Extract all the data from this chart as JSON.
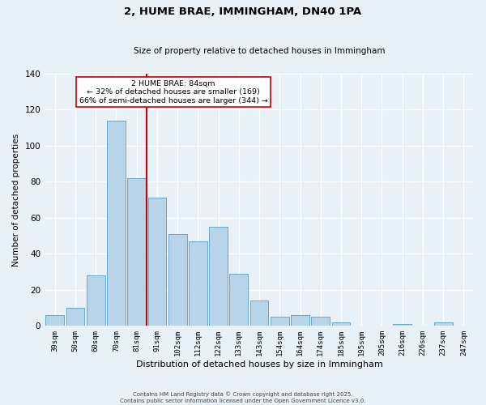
{
  "title": "2, HUME BRAE, IMMINGHAM, DN40 1PA",
  "subtitle": "Size of property relative to detached houses in Immingham",
  "xlabel": "Distribution of detached houses by size in Immingham",
  "ylabel": "Number of detached properties",
  "categories": [
    "39sqm",
    "50sqm",
    "60sqm",
    "70sqm",
    "81sqm",
    "91sqm",
    "102sqm",
    "112sqm",
    "122sqm",
    "133sqm",
    "143sqm",
    "154sqm",
    "164sqm",
    "174sqm",
    "185sqm",
    "195sqm",
    "205sqm",
    "216sqm",
    "226sqm",
    "237sqm",
    "247sqm"
  ],
  "values": [
    6,
    10,
    28,
    114,
    82,
    71,
    51,
    47,
    55,
    29,
    14,
    5,
    6,
    5,
    2,
    0,
    0,
    1,
    0,
    2,
    0
  ],
  "bar_color": "#b8d4e8",
  "bar_edgecolor": "#5a9ec9",
  "bg_color": "#e8f0f8",
  "grid_color": "#ffffff",
  "vline_x": 4.5,
  "vline_color": "#cc0000",
  "annotation_title": "2 HUME BRAE: 84sqm",
  "annotation_line1": "← 32% of detached houses are smaller (169)",
  "annotation_line2": "66% of semi-detached houses are larger (344) →",
  "annotation_box_color": "#ffffff",
  "annotation_box_edgecolor": "#cc0000",
  "footer1": "Contains HM Land Registry data © Crown copyright and database right 2025.",
  "footer2": "Contains public sector information licensed under the Open Government Licence v3.0.",
  "ylim": [
    0,
    140
  ],
  "yticks": [
    0,
    20,
    40,
    60,
    80,
    100,
    120,
    140
  ]
}
